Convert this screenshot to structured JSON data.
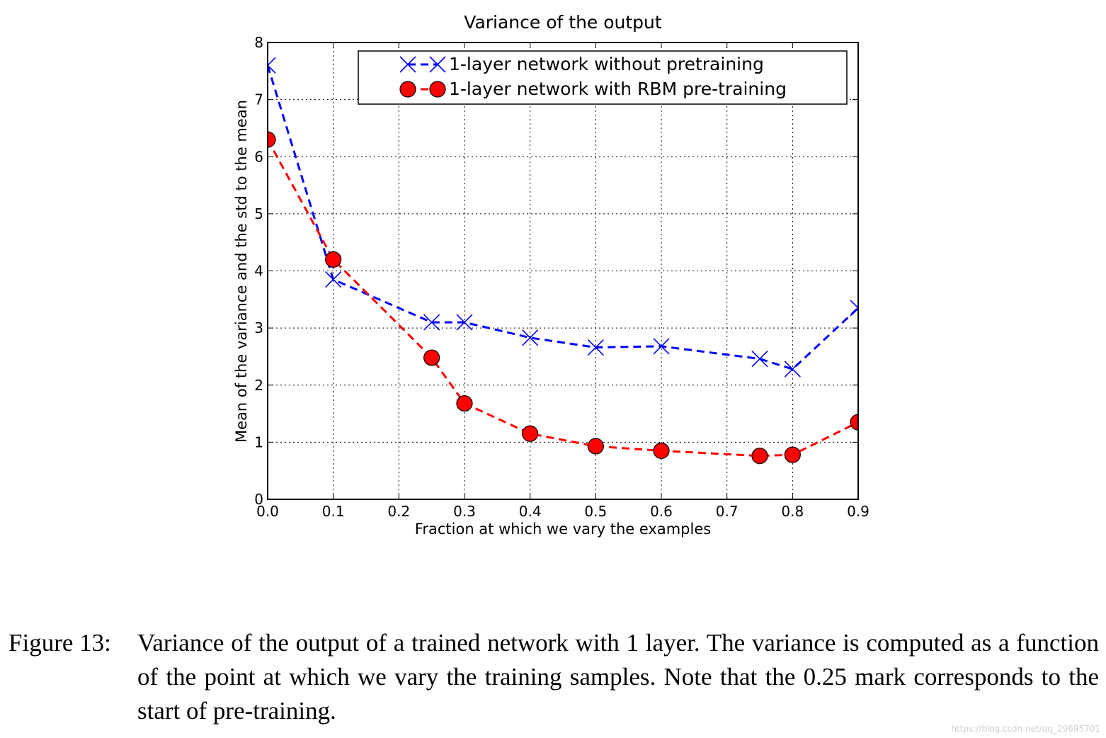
{
  "chart_data": {
    "type": "line",
    "title": "Variance of the output",
    "xlabel": "Fraction at which we vary the examples",
    "ylabel": "Mean of the variance and the std to the mean",
    "xlim": [
      0.0,
      0.9
    ],
    "ylim": [
      0,
      8
    ],
    "xticks": [
      "0.0",
      "0.1",
      "0.2",
      "0.3",
      "0.4",
      "0.5",
      "0.6",
      "0.7",
      "0.8",
      "0.9"
    ],
    "yticks": [
      "0",
      "1",
      "2",
      "3",
      "4",
      "5",
      "6",
      "7",
      "8"
    ],
    "grid": true,
    "legend_position": "top-right",
    "series": [
      {
        "name": "1-layer network without pretraining",
        "color": "#0000ff",
        "marker": "x",
        "linestyle": "dashed",
        "x": [
          0.0,
          0.1,
          0.25,
          0.3,
          0.4,
          0.5,
          0.6,
          0.75,
          0.8,
          0.9
        ],
        "y": [
          7.6,
          3.85,
          3.1,
          3.1,
          2.83,
          2.66,
          2.68,
          2.46,
          2.28,
          3.35
        ]
      },
      {
        "name": "1-layer network with RBM  pre-training",
        "color": "#ff0000",
        "marker": "o",
        "linestyle": "dashed",
        "x": [
          0.0,
          0.1,
          0.25,
          0.3,
          0.4,
          0.5,
          0.6,
          0.75,
          0.8,
          0.9
        ],
        "y": [
          6.3,
          4.2,
          2.48,
          1.68,
          1.15,
          0.93,
          0.85,
          0.76,
          0.78,
          1.35
        ]
      }
    ]
  },
  "caption": {
    "label": "Figure 13:",
    "text": "Variance of the output of a trained network with 1 layer. The variance is computed as a function of the point at which we vary the training samples. Note that the 0.25 mark corresponds to the start of pre-training."
  },
  "watermark": "https://blog.csdn.net/qq_29695701"
}
